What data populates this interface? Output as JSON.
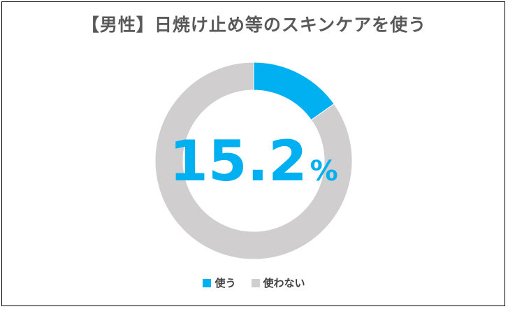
{
  "chart_data": {
    "type": "pie",
    "title": "【男性】日焼け止め等のスキンケアを使う",
    "center_value": "15.2",
    "center_unit": "%",
    "series": [
      {
        "name": "使う",
        "value": 15.2,
        "color": "#00B0F0"
      },
      {
        "name": "使わない",
        "value": 84.8,
        "color": "#D0CECE"
      }
    ],
    "legend_position": "bottom"
  }
}
